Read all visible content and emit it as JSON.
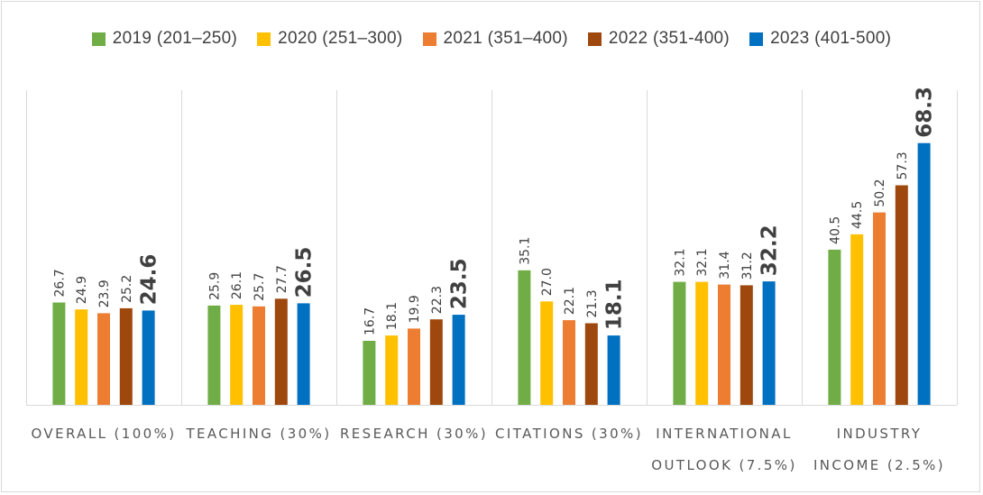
{
  "chart_data": {
    "type": "bar",
    "categories": [
      [
        "OVERALL (100%)"
      ],
      [
        "TEACHING (30%)"
      ],
      [
        "RESEARCH (30%)"
      ],
      [
        "CITATIONS (30%)"
      ],
      [
        "INTERNATIONAL",
        "OUTLOOK (7.5%)"
      ],
      [
        "INDUSTRY",
        "INCOME (2.5%)"
      ]
    ],
    "series": [
      {
        "name": "2019 (201–250)",
        "color": "#70ad47",
        "values": [
          26.7,
          25.9,
          16.7,
          35.1,
          32.1,
          40.5
        ],
        "labels": [
          "26.7",
          "25.9",
          "16.7",
          "35.1",
          "32.1",
          "40.5"
        ]
      },
      {
        "name": "2020 (251–300)",
        "color": "#ffc000",
        "values": [
          24.9,
          26.1,
          18.1,
          27.0,
          32.1,
          44.5
        ],
        "labels": [
          "24.9",
          "26.1",
          "18.1",
          "27.0",
          "32.1",
          "44.5"
        ]
      },
      {
        "name": "2021 (351–400)",
        "color": "#ed7d31",
        "values": [
          23.9,
          25.7,
          19.9,
          22.1,
          31.4,
          50.2
        ],
        "labels": [
          "23.9",
          "25.7",
          "19.9",
          "22.1",
          "31.4",
          "50.2"
        ]
      },
      {
        "name": "2022 (351-400)",
        "color": "#9e480e",
        "values": [
          25.2,
          27.7,
          22.3,
          21.3,
          31.2,
          57.3
        ],
        "labels": [
          "25.2",
          "27.7",
          "22.3",
          "21.3",
          "31.2",
          "57.3"
        ]
      },
      {
        "name": "2023 (401-500)",
        "color": "#0070c0",
        "values": [
          24.6,
          26.5,
          23.5,
          18.1,
          32.2,
          68.3
        ],
        "labels": [
          "24.6",
          "26.5",
          "23.5",
          "18.1",
          "32.2",
          "68.3"
        ],
        "emphasized": true
      }
    ],
    "title": "",
    "xlabel": "",
    "ylabel": "",
    "ylim": [
      0,
      75
    ],
    "grid": "vertical category separators",
    "legend_position": "top"
  }
}
